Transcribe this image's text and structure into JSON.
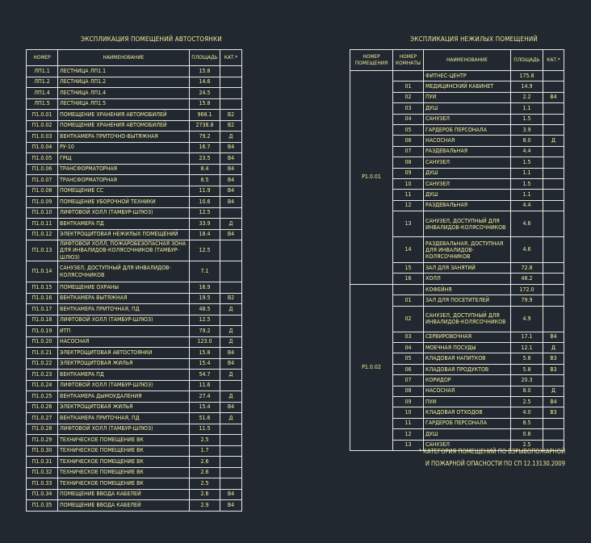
{
  "left": {
    "title": "Экспликация помещений автостоянки",
    "headers": [
      "Номер",
      "Наименование",
      "Площадь",
      "Кат.*"
    ],
    "rows": [
      [
        "ЛП1.1",
        "Лестница ЛП1.1",
        "15.8",
        ""
      ],
      [
        "ЛП1.2",
        "Лестница ЛП1.2",
        "14.6",
        ""
      ],
      [
        "ЛП1.4",
        "Лестница ЛП1.4",
        "24.5",
        ""
      ],
      [
        "ЛП1.5",
        "Лестница ЛП1.5",
        "15.8",
        ""
      ],
      [
        "П1.0.01",
        "Помещение хранения автомобилей",
        "968.1",
        "В2"
      ],
      [
        "П1.0.02",
        "Помещение хранения автомобилей",
        "2738.8",
        "В2"
      ],
      [
        "П1.0.03",
        "Венткамера приточно-вытяжная",
        "79.2",
        "Д"
      ],
      [
        "П1.0.04",
        "РУ-10",
        "16.7",
        "В4"
      ],
      [
        "П1.0.05",
        "ГРЩ",
        "23.5",
        "В4"
      ],
      [
        "П1.0.06",
        "Трансформаторная",
        "8.4",
        "В4"
      ],
      [
        "П1.0.07",
        "Трансформаторная",
        "8.5",
        "В4"
      ],
      [
        "П1.0.08",
        "Помещение СС",
        "11.9",
        "В4"
      ],
      [
        "П1.0.09",
        "Помещение уборочной техники",
        "10.6",
        "В4"
      ],
      [
        "П1.0.10",
        "Лифтовой холл (тамбур-шлюз)",
        "12.5",
        ""
      ],
      [
        "П1.0.11",
        "Венткамера ПД",
        "33.9",
        "Д"
      ],
      [
        "П1.0.12",
        "Электрощитовая нежилых помещений",
        "18.4",
        "В4"
      ],
      [
        "П1.0.13",
        "Лифтовой холл, пожаробезопасная зона для инвалидов-колясочников (тамбур-шлюз)",
        "12.5",
        ""
      ],
      [
        "П1.0.14",
        "Санузел, доступный для инвалидов-колясочников",
        "7.1",
        ""
      ],
      [
        "П1.0.15",
        "Помещение охраны",
        "16.9",
        ""
      ],
      [
        "П1.0.16",
        "Венткамера вытяжная",
        "19.5",
        "В2"
      ],
      [
        "П1.0.17",
        "Венткамера приточная, ПД",
        "48.5",
        "Д"
      ],
      [
        "П1.0.18",
        "Лифтовой холл (тамбур-шлюз)",
        "12.5",
        ""
      ],
      [
        "П1.0.19",
        "ИТП",
        "79.2",
        "Д"
      ],
      [
        "П1.0.20",
        "Насосная",
        "123.0",
        "Д"
      ],
      [
        "П1.0.21",
        "Электрощитовая автостоянки",
        "15.8",
        "В4"
      ],
      [
        "П1.0.22",
        "Электрощитовая жилья",
        "15.4",
        "В4"
      ],
      [
        "П1.0.23",
        "Венткамера ПД",
        "54.7",
        "Д"
      ],
      [
        "П1.0.24",
        "Лифтовой холл (тамбур-шлюз)",
        "11.6",
        ""
      ],
      [
        "П1.0.25",
        "Венткамера дымоудаления",
        "27.4",
        "Д"
      ],
      [
        "П1.0.26",
        "Электрощитовая жилья",
        "15.4",
        "В4"
      ],
      [
        "П1.0.27",
        "Венткамера приточная, ПД",
        "51.6",
        "Д"
      ],
      [
        "П1.0.28",
        "Лифтовой холл (тамбур-шлюз)",
        "11.5",
        ""
      ],
      [
        "П1.0.29",
        "Техническое помещение ВК",
        "2.5",
        ""
      ],
      [
        "П1.0.30",
        "Техническое помещение ВК",
        "1.7",
        ""
      ],
      [
        "П1.0.31",
        "Техническое помещение ВК",
        "2.6",
        ""
      ],
      [
        "П1.0.32",
        "Техническое помещение ВК",
        "2.6",
        ""
      ],
      [
        "П1.0.33",
        "Техническое помещение ВК",
        "2.5",
        ""
      ],
      [
        "П1.0.34",
        "Помещение ввода кабелей",
        "2.6",
        "В4"
      ],
      [
        "П1.0.35",
        "Помещение ввода кабелей",
        "2.9",
        "В4"
      ]
    ]
  },
  "right": {
    "title": "Экспликация нежилых помещений",
    "headers": [
      "Номер помещения",
      "Номер комнаты",
      "Наименование",
      "Площадь",
      "Кат.*"
    ],
    "groups": [
      {
        "premise": "Р1.0.01",
        "rows": [
          [
            "",
            "Фитнес-центр",
            "175.8",
            ""
          ],
          [
            "01",
            "Медицинский кабинет",
            "14.9",
            ""
          ],
          [
            "02",
            "ПУИ",
            "2.2",
            "В4"
          ],
          [
            "03",
            "Душ",
            "1.1",
            ""
          ],
          [
            "04",
            "Санузел",
            "1.5",
            ""
          ],
          [
            "05",
            "Гардероб персонала",
            "3.9",
            ""
          ],
          [
            "06",
            "Насосная",
            "8.0",
            "Д"
          ],
          [
            "07",
            "Раздевальная",
            "4.4",
            ""
          ],
          [
            "08",
            "Санузел",
            "1.5",
            ""
          ],
          [
            "09",
            "Душ",
            "1.1",
            ""
          ],
          [
            "10",
            "Санузел",
            "1.5",
            ""
          ],
          [
            "11",
            "Душ",
            "1.1",
            ""
          ],
          [
            "12",
            "Раздевальная",
            "4.4",
            ""
          ],
          [
            "13",
            "Санузел, доступный для инвалидов-колясочников",
            "4.6",
            ""
          ],
          [
            "14",
            "Раздевальная, доступная для инвалидов-колясочников",
            "4.6",
            ""
          ],
          [
            "15",
            "Зал для занятий",
            "72.8",
            ""
          ],
          [
            "16",
            "Холл",
            "48.2",
            ""
          ]
        ]
      },
      {
        "premise": "Р1.0.02",
        "rows": [
          [
            "",
            "Кофейня",
            "172.0",
            ""
          ],
          [
            "01",
            "Зал для посетителей",
            "79.9",
            ""
          ],
          [
            "02",
            "Санузел, доступный для инвалидов-колясочников",
            "4.9",
            ""
          ],
          [
            "03",
            "Сервировочная",
            "17.1",
            "В4"
          ],
          [
            "04",
            "Моечная посуды",
            "12.1",
            "Д"
          ],
          [
            "05",
            "Кладовая напитков",
            "5.8",
            "В3"
          ],
          [
            "06",
            "Кладовая продуктов",
            "5.8",
            "В3"
          ],
          [
            "07",
            "Коридор",
            "20.3",
            ""
          ],
          [
            "08",
            "Насосная",
            "8.0",
            "Д"
          ],
          [
            "09",
            "ПУИ",
            "2.5",
            "В4"
          ],
          [
            "10",
            "Кладовая отходов",
            "4.0",
            "В3"
          ],
          [
            "11",
            "Гардероб персонала",
            "8.5",
            ""
          ],
          [
            "12",
            "Душ",
            "0.8",
            ""
          ],
          [
            "13",
            "Санузел",
            "2.5",
            ""
          ]
        ]
      }
    ]
  },
  "note": {
    "line1": "* Категория помещений по взрывопожарной",
    "line2": "и пожарной опасности по СП 12.13130.2009"
  }
}
